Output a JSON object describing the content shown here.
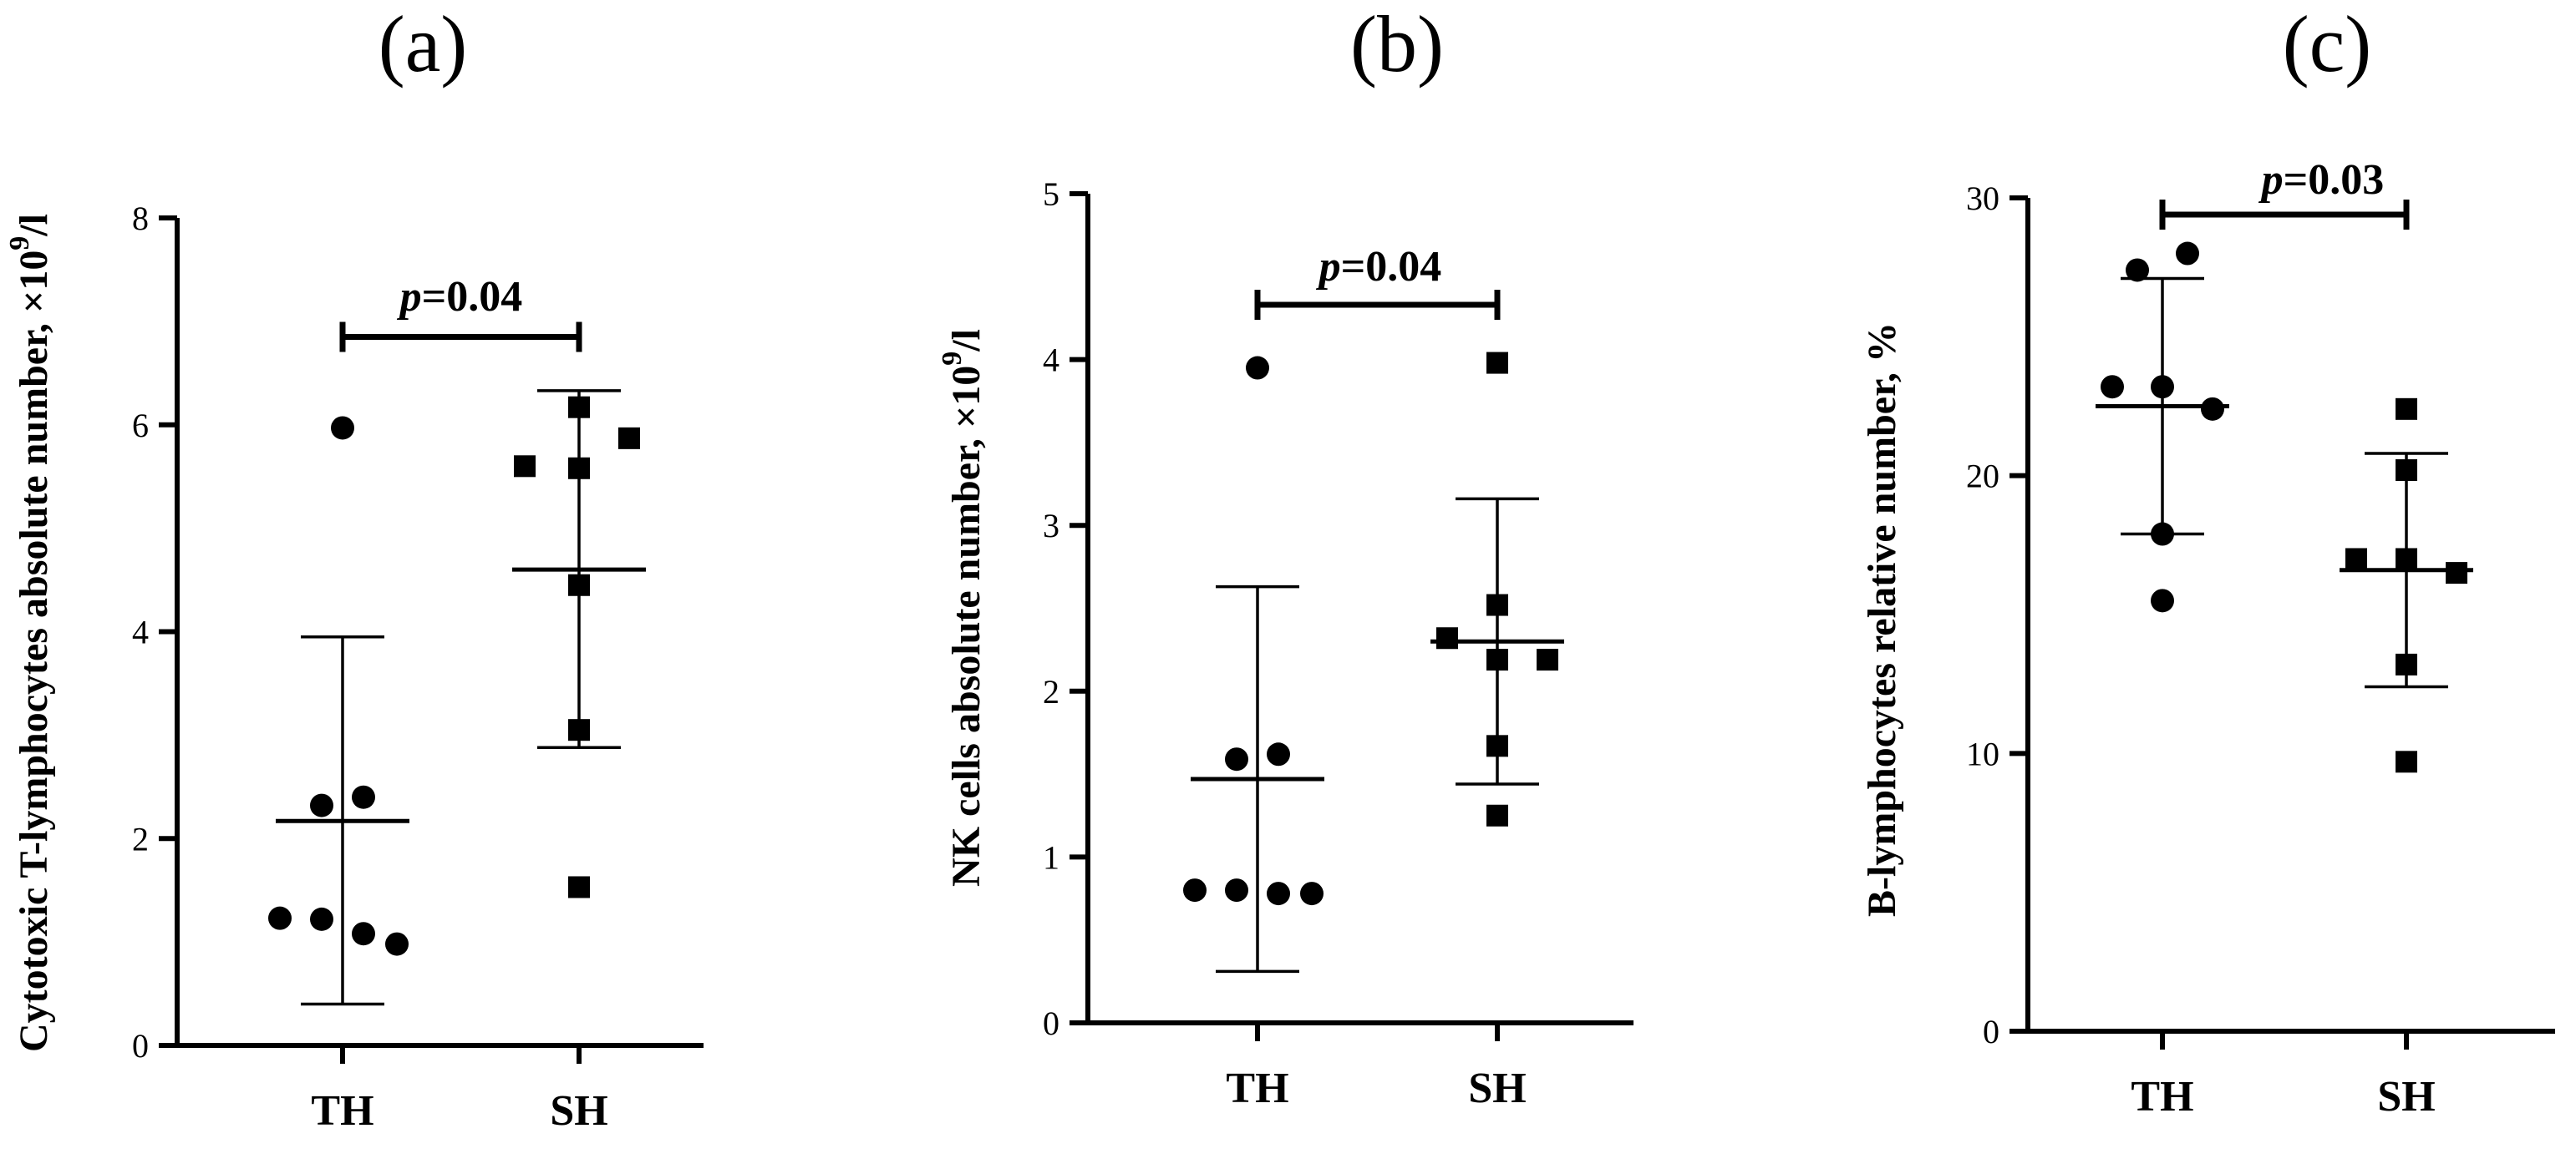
{
  "chart_data": [
    {
      "type": "scatter",
      "panel_label": "(a)",
      "ylabel": "Cytotoxic T-lymphocytes absolute number, ×10⁹/l",
      "ylabel_main": "Cytotoxic T-lymphocytes absolute number, ×10",
      "ylabel_sup": "9",
      "ylabel_unit": "/l",
      "ylim": [
        0,
        8
      ],
      "yticks": [
        0,
        2,
        4,
        6,
        8
      ],
      "yticks_text": [
        "0",
        "2",
        "4",
        "6",
        "8"
      ],
      "categories": [
        "TH",
        "SH"
      ],
      "series": [
        {
          "name": "TH",
          "marker": "circle",
          "points": [
            5.97,
            2.4,
            2.32,
            1.23,
            1.22,
            1.08,
            0.98
          ],
          "mean": 2.17,
          "lower": 0.4,
          "upper": 3.95
        },
        {
          "name": "SH",
          "marker": "square",
          "points": [
            6.17,
            5.87,
            5.6,
            5.58,
            4.45,
            3.05,
            1.53
          ],
          "mean": 4.6,
          "lower": 2.88,
          "upper": 6.33
        }
      ],
      "comparison": {
        "p_prefix": "p",
        "p_value": "=0.04",
        "y": 6.85
      }
    },
    {
      "type": "scatter",
      "panel_label": "(b)",
      "ylabel": "NK cells absolute number, ×10⁹/l",
      "ylabel_main": "NK cells absolute number, ×10",
      "ylabel_sup": "9",
      "ylabel_unit": "/l",
      "ylim": [
        0,
        5
      ],
      "yticks": [
        0,
        1,
        2,
        3,
        4,
        5
      ],
      "yticks_text": [
        "0",
        "1",
        "2",
        "3",
        "4",
        "5"
      ],
      "categories": [
        "TH",
        "SH"
      ],
      "series": [
        {
          "name": "TH",
          "marker": "circle",
          "points": [
            3.95,
            1.62,
            1.59,
            0.8,
            0.8,
            0.78,
            0.78
          ],
          "mean": 1.47,
          "lower": 0.31,
          "upper": 2.63
        },
        {
          "name": "SH",
          "marker": "square",
          "points": [
            3.98,
            2.52,
            2.32,
            2.19,
            2.19,
            1.67,
            1.25
          ],
          "mean": 2.3,
          "lower": 1.44,
          "upper": 3.16
        }
      ],
      "comparison": {
        "p_prefix": "p",
        "p_value": "=0.04",
        "y": 4.33
      }
    },
    {
      "type": "scatter",
      "panel_label": "(c)",
      "ylabel": "B-lymphocytes relative number, %",
      "ylim": [
        0,
        30
      ],
      "yticks": [
        0,
        10,
        20,
        30
      ],
      "yticks_text": [
        "0",
        "10",
        "20",
        "30"
      ],
      "categories": [
        "TH",
        "SH"
      ],
      "series": [
        {
          "name": "TH",
          "marker": "circle",
          "points": [
            28.0,
            27.4,
            23.2,
            23.2,
            22.4,
            17.9,
            15.5
          ],
          "mean": 22.5,
          "lower": 17.9,
          "upper": 27.1
        },
        {
          "name": "SH",
          "marker": "square",
          "points": [
            22.4,
            20.2,
            17.0,
            17.0,
            16.5,
            13.2,
            9.7
          ],
          "mean": 16.6,
          "lower": 12.4,
          "upper": 20.8
        },
        {
          "name": "",
          "marker": "none",
          "points": []
        }
      ],
      "comparison": {
        "p_prefix": "p",
        "p_value": "=0.03",
        "y": 29.4
      }
    }
  ]
}
